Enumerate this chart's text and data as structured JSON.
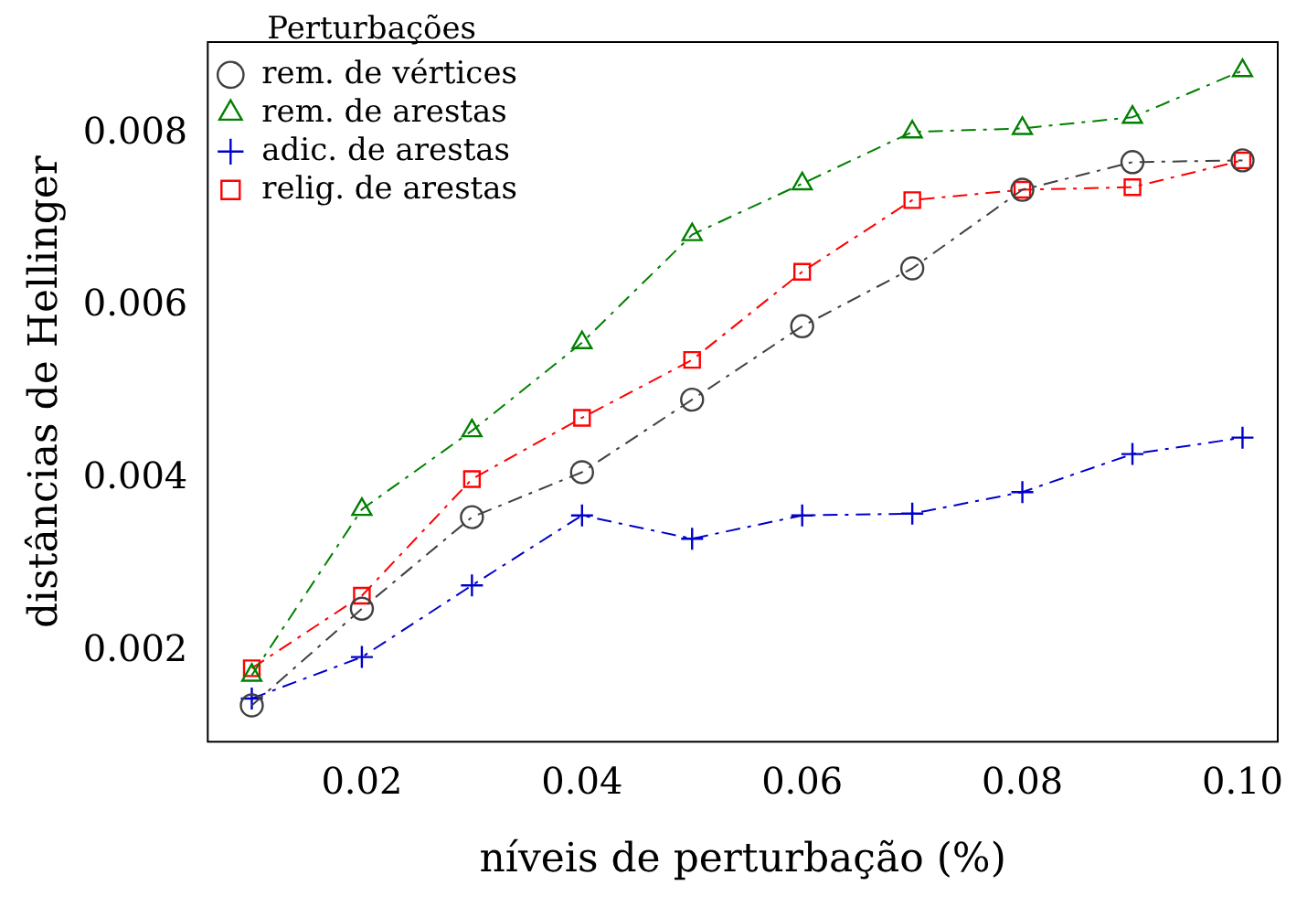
{
  "chart_data": {
    "type": "line",
    "xlabel": "níveis de perturbação (%)",
    "ylabel": "distâncias de Hellinger",
    "legend_title": "Perturbações",
    "legend": "top left",
    "grid": false,
    "line_style": "dashed",
    "x": [
      0.01,
      0.02,
      0.03,
      0.04,
      0.05,
      0.06,
      0.07,
      0.08,
      0.09,
      0.1
    ],
    "xlim": [
      0.006,
      0.1032
    ],
    "xticks": [
      {
        "value": 0.02,
        "label": "0.02"
      },
      {
        "value": 0.04,
        "label": "0.04"
      },
      {
        "value": 0.06,
        "label": "0.06"
      },
      {
        "value": 0.08,
        "label": "0.08"
      },
      {
        "value": 0.1,
        "label": "0.10"
      }
    ],
    "ylim": [
      0.00096,
      0.00906
    ],
    "yticks": [
      0.002,
      0.004,
      0.006,
      0.008
    ],
    "series": [
      {
        "name": "rem. de vértices",
        "color": "#404040",
        "marker": "circle",
        "values": [
          0.00138,
          0.0025,
          0.00356,
          0.00408,
          0.00492,
          0.00577,
          0.00644,
          0.00735,
          0.00767,
          0.00769
        ]
      },
      {
        "name": "rem. de arestas",
        "color": "#008000",
        "marker": "triangle",
        "values": [
          0.00173,
          0.00365,
          0.00456,
          0.00558,
          0.00683,
          0.00742,
          0.00802,
          0.00806,
          0.00819,
          0.00873
        ]
      },
      {
        "name": "adic. de arestas",
        "color": "#0000cc",
        "marker": "cross",
        "values": [
          0.00146,
          0.00194,
          0.00277,
          0.00358,
          0.00331,
          0.00358,
          0.0036,
          0.00385,
          0.00429,
          0.00448
        ]
      },
      {
        "name": "relig. de arestas",
        "color": "#ff0000",
        "marker": "square",
        "values": [
          0.00181,
          0.00265,
          0.004,
          0.00471,
          0.00538,
          0.0064,
          0.00723,
          0.00735,
          0.00738,
          0.00769
        ]
      }
    ]
  }
}
